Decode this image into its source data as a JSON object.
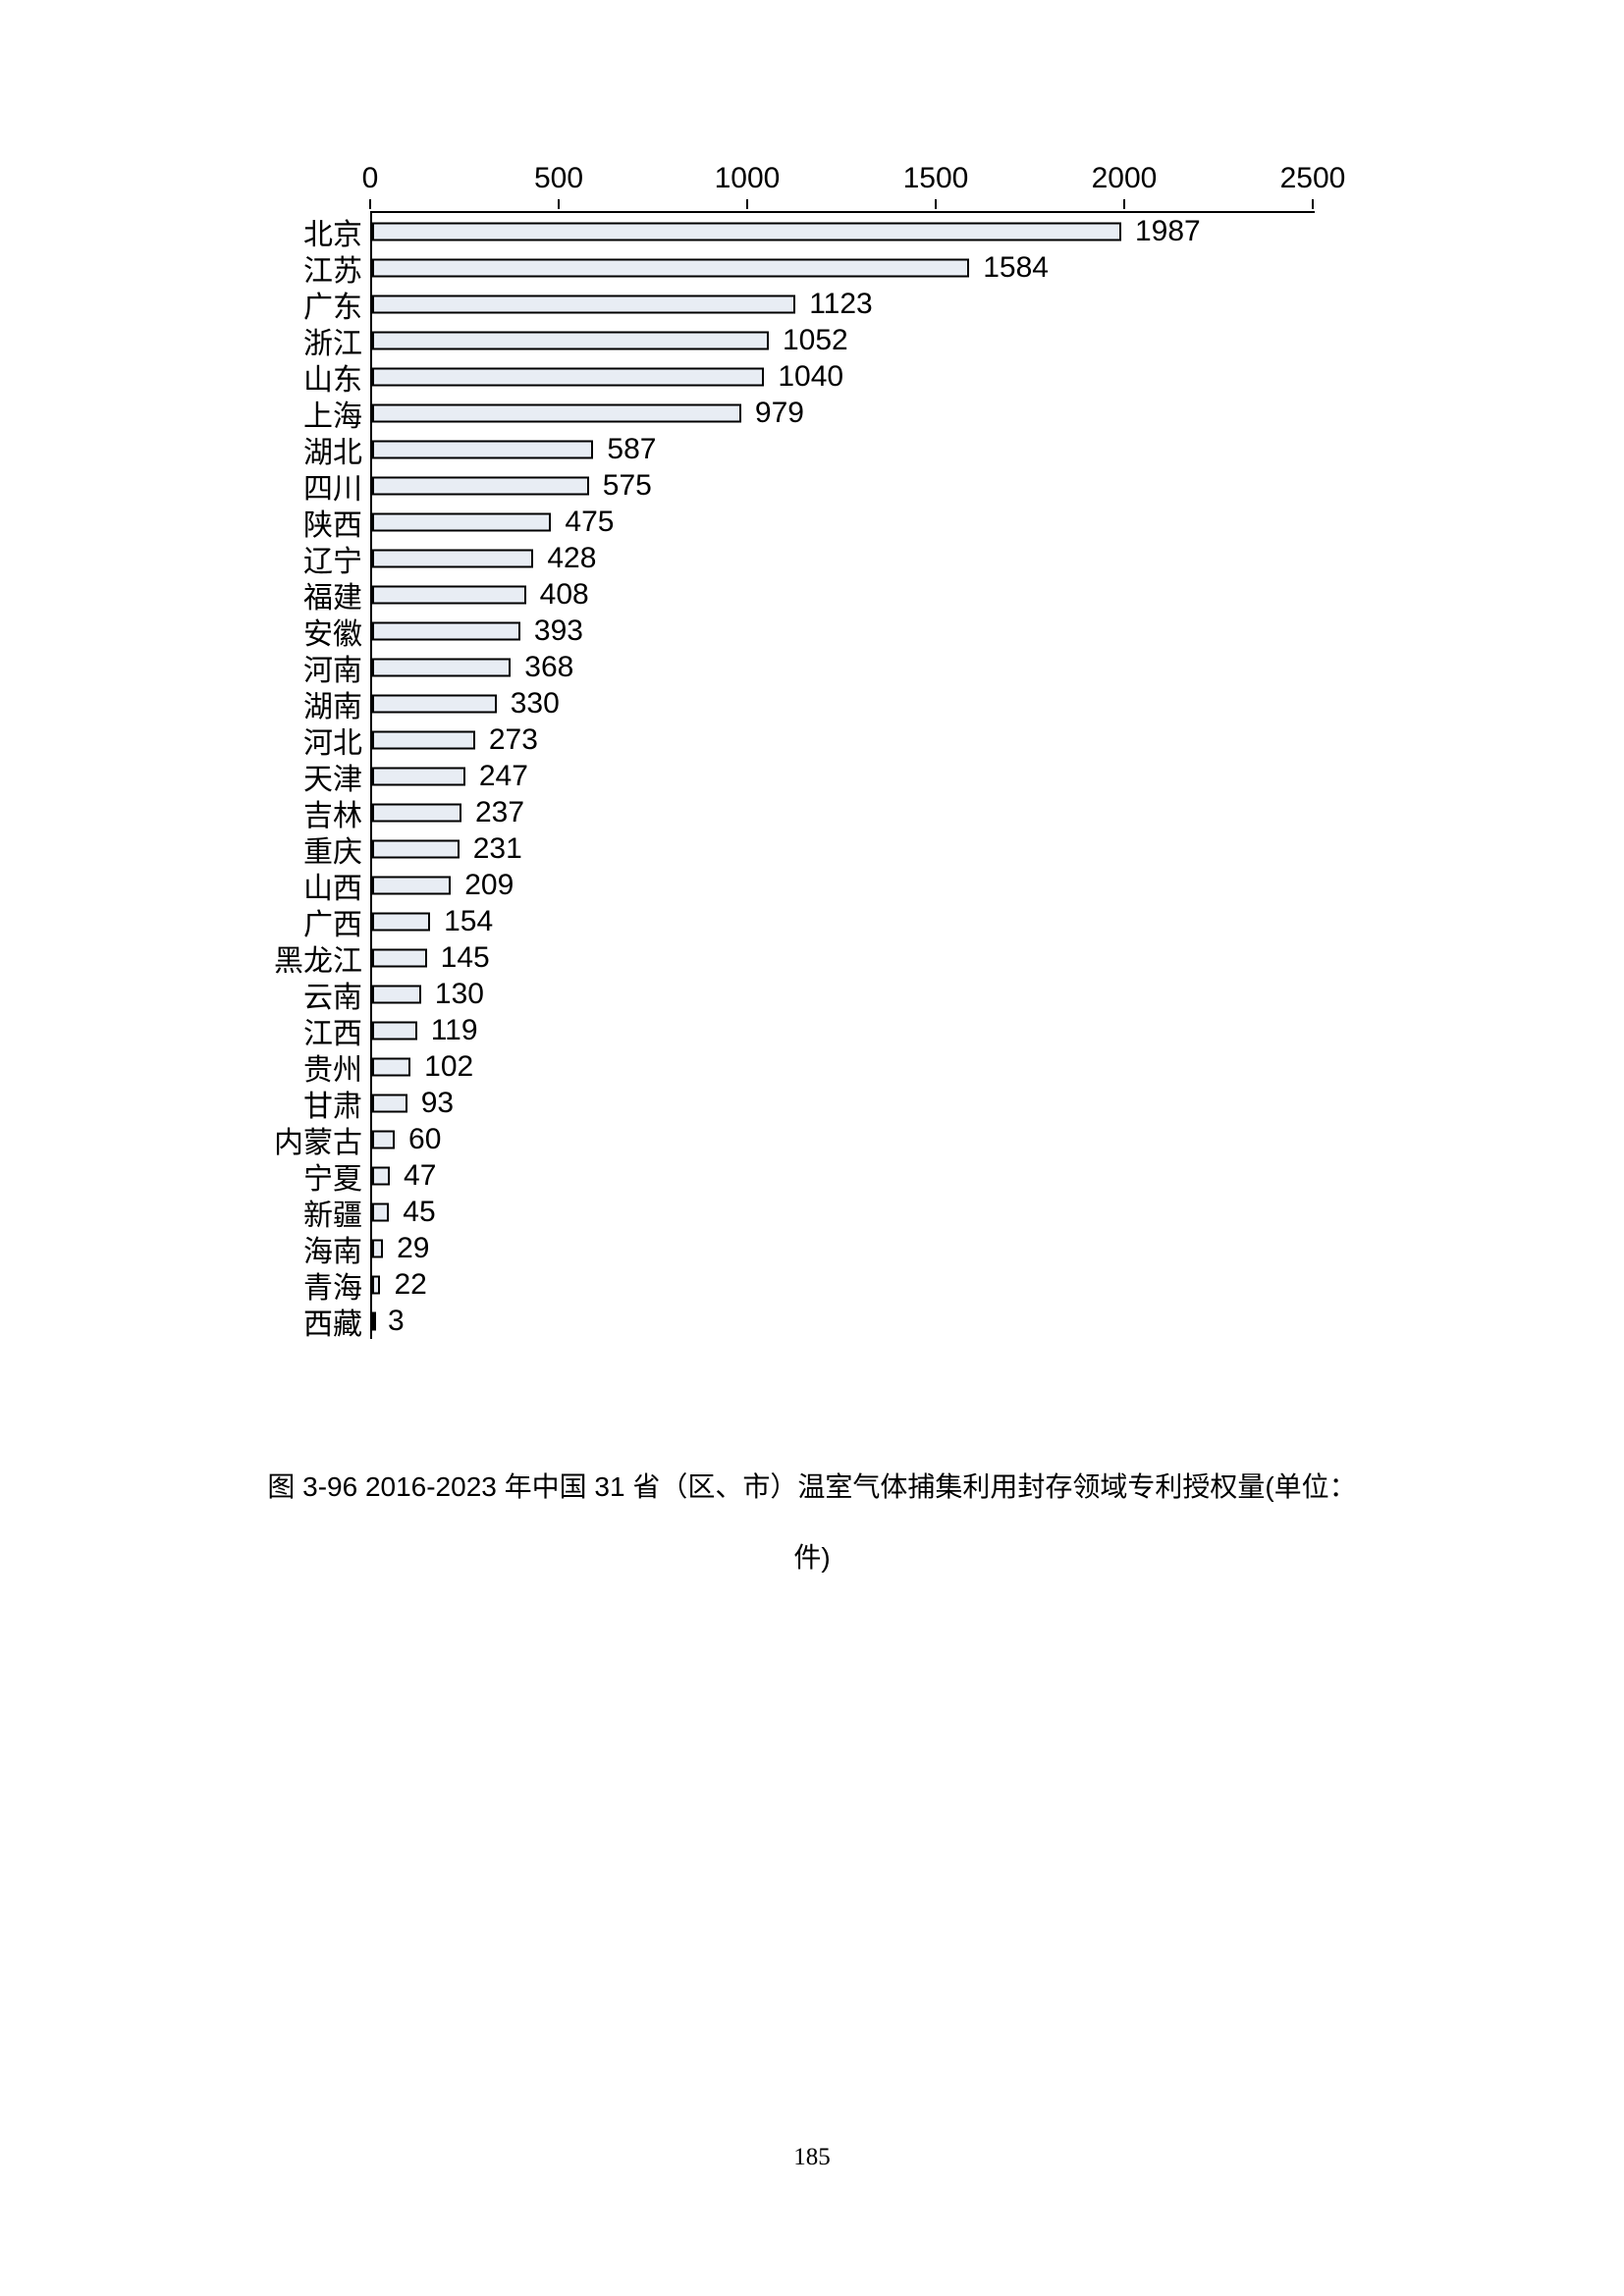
{
  "chart": {
    "type": "bar",
    "orientation": "horizontal",
    "xmax": 2500,
    "xtick_step": 500,
    "bar_fill": "#e8edf4",
    "bar_border": "#000000",
    "axis_color": "#000000",
    "background_color": "#ffffff",
    "label_fontsize": 30,
    "value_fontsize": 30,
    "xtick_fontsize": 30,
    "xticks": [
      {
        "v": 0,
        "label": "0"
      },
      {
        "v": 500,
        "label": "500"
      },
      {
        "v": 1000,
        "label": "1000"
      },
      {
        "v": 1500,
        "label": "1500"
      },
      {
        "v": 2000,
        "label": "2000"
      },
      {
        "v": 2500,
        "label": "2500"
      }
    ],
    "data": [
      {
        "label": "北京",
        "value": 1987
      },
      {
        "label": "江苏",
        "value": 1584
      },
      {
        "label": "广东",
        "value": 1123
      },
      {
        "label": "浙江",
        "value": 1052
      },
      {
        "label": "山东",
        "value": 1040
      },
      {
        "label": "上海",
        "value": 979
      },
      {
        "label": "湖北",
        "value": 587
      },
      {
        "label": "四川",
        "value": 575
      },
      {
        "label": "陕西",
        "value": 475
      },
      {
        "label": "辽宁",
        "value": 428
      },
      {
        "label": "福建",
        "value": 408
      },
      {
        "label": "安徽",
        "value": 393
      },
      {
        "label": "河南",
        "value": 368
      },
      {
        "label": "湖南",
        "value": 330
      },
      {
        "label": "河北",
        "value": 273
      },
      {
        "label": "天津",
        "value": 247
      },
      {
        "label": "吉林",
        "value": 237
      },
      {
        "label": "重庆",
        "value": 231
      },
      {
        "label": "山西",
        "value": 209
      },
      {
        "label": "广西",
        "value": 154
      },
      {
        "label": "黑龙江",
        "value": 145
      },
      {
        "label": "云南",
        "value": 130
      },
      {
        "label": "江西",
        "value": 119
      },
      {
        "label": "贵州",
        "value": 102
      },
      {
        "label": "甘肃",
        "value": 93
      },
      {
        "label": "内蒙古",
        "value": 60
      },
      {
        "label": "宁夏",
        "value": 47
      },
      {
        "label": "新疆",
        "value": 45
      },
      {
        "label": "海南",
        "value": 29
      },
      {
        "label": "青海",
        "value": 22
      },
      {
        "label": "西藏",
        "value": 3
      }
    ]
  },
  "caption": {
    "line1": "图 3-96 2016-2023 年中国 31 省（区、市）温室气体捕集利用封存领域专利授权量(单位：",
    "line2": "件)",
    "fontsize": 28
  },
  "page_number": "185"
}
